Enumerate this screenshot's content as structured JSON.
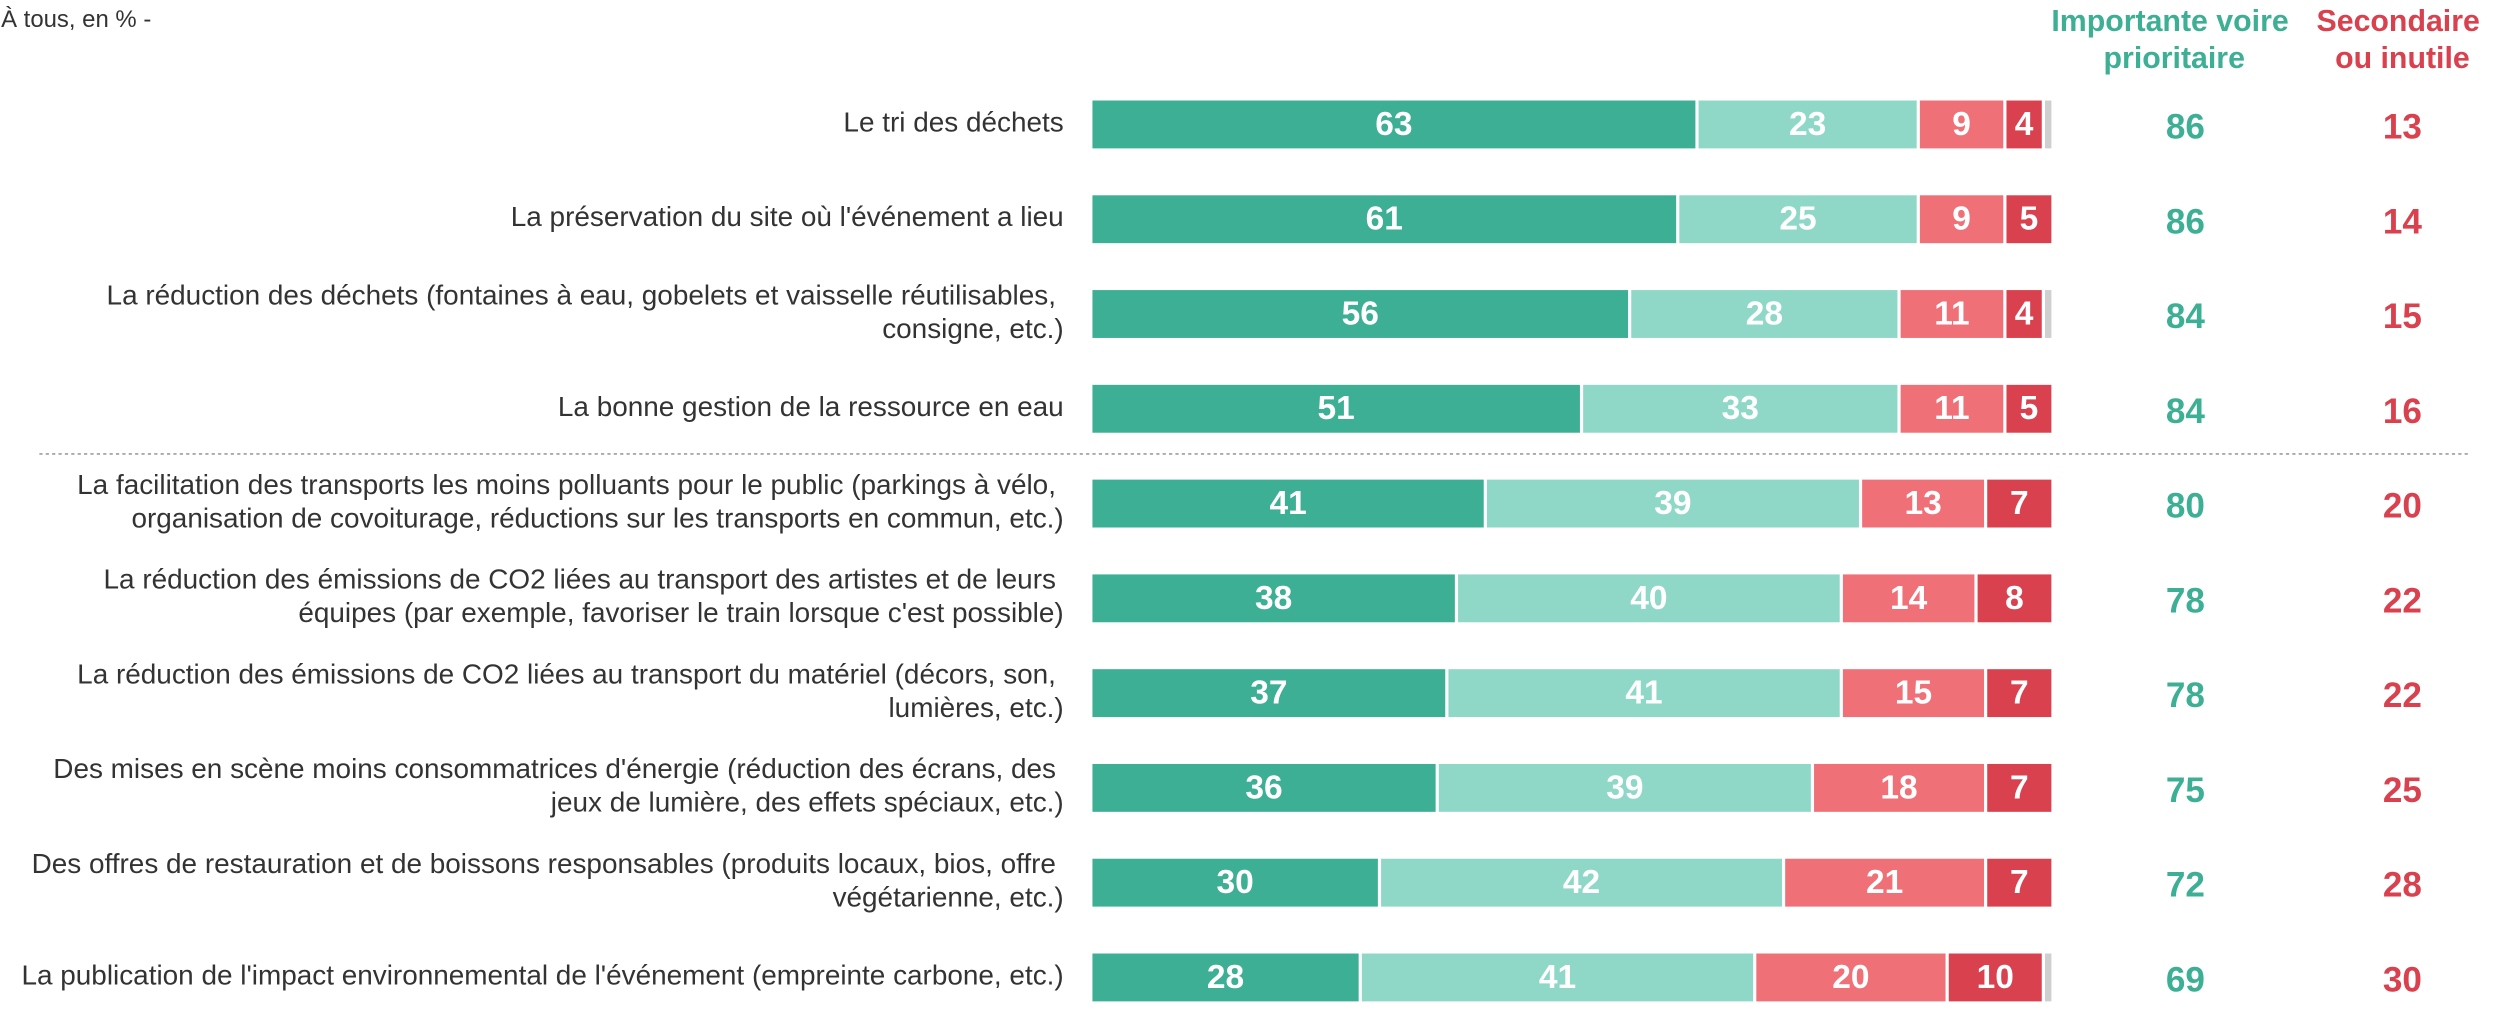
{
  "chart_data": {
    "type": "stacked_barh",
    "subtitle": "À tous, en % -",
    "categories": [
      "Le tri des déchets",
      "La préservation du site où l'événement a lieu",
      "La réduction des déchets (fontaines à eau, gobelets et vaisselle réutilisables, consigne, etc.)",
      "La bonne gestion de la ressource en eau",
      "La facilitation des transports les moins polluants pour le public (parkings à vélo, organisation de covoiturage, réductions sur les transports en commun, etc.)",
      "La réduction des émissions de CO2 liées au transport des artistes et de leurs équipes (par exemple, favoriser le train lorsque c'est possible)",
      "La réduction des émissions de CO2 liées au transport du matériel (décors, son, lumières, etc.)",
      "Des mises en scène moins consommatrices d'énergie (réduction des écrans, des jeux de lumière, des effets spéciaux, etc.)",
      "Des offres de restauration et de boissons responsables (produits locaux, bios, offre végétarienne, etc.)",
      "La publication de l'impact environnemental de l'événement (empreinte carbone, etc.)"
    ],
    "series": [
      {
        "color": "#3daf94",
        "values": [
          63,
          61,
          56,
          51,
          41,
          38,
          37,
          36,
          30,
          28
        ]
      },
      {
        "color": "#8fd8c8",
        "values": [
          23,
          25,
          28,
          33,
          39,
          40,
          41,
          39,
          42,
          41
        ]
      },
      {
        "color": "#f07078",
        "values": [
          9,
          9,
          11,
          11,
          13,
          14,
          15,
          18,
          21,
          20
        ]
      },
      {
        "color": "#d9414e",
        "values": [
          4,
          5,
          4,
          5,
          7,
          8,
          7,
          7,
          7,
          10
        ]
      },
      {
        "color": "#cfcfcf",
        "values": [
          1,
          0,
          1,
          0,
          0,
          0,
          0,
          0,
          0,
          1
        ]
      }
    ],
    "totals": [
      {
        "name": "Importante voire prioritaire",
        "color": "#3daf94",
        "values": [
          86,
          86,
          84,
          84,
          80,
          78,
          78,
          75,
          72,
          69
        ]
      },
      {
        "name": "Secondaire ou inutile",
        "color": "#d9414e",
        "values": [
          13,
          14,
          15,
          16,
          20,
          22,
          22,
          25,
          28,
          30
        ]
      }
    ],
    "xlim": [
      0,
      100
    ]
  }
}
